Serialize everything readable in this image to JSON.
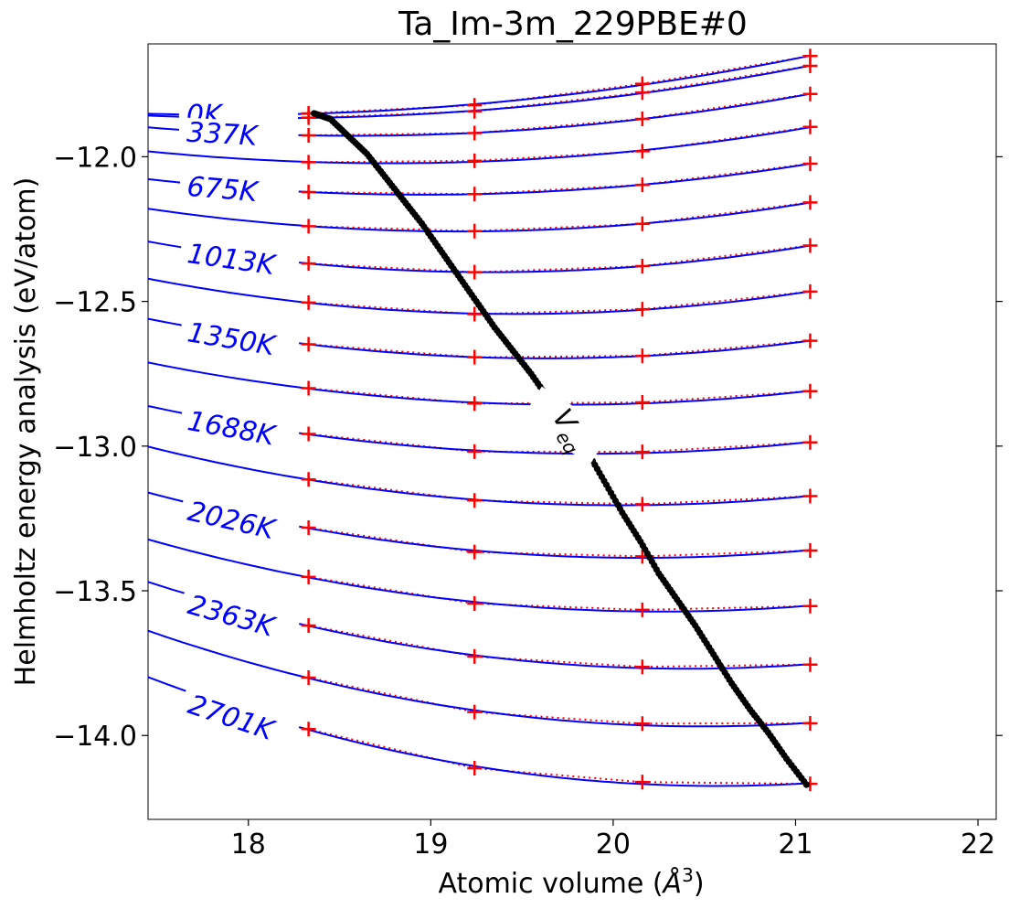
{
  "chart_data": {
    "type": "line",
    "title": "Ta_Im-3m_229PBE#0",
    "xlabel": "Atomic volume (",
    "xlabel_unit": "Å",
    "xlabel_sup": "3",
    "xlabel_close": ")",
    "ylabel": "Helmholtz energy analysis (eV/atom)",
    "xlim": [
      17.45,
      22.1
    ],
    "ylim": [
      -14.29,
      -11.61
    ],
    "xticks": [
      18,
      19,
      20,
      21,
      22
    ],
    "yticks": [
      -12.0,
      -12.5,
      -13.0,
      -13.5,
      -14.0
    ],
    "xtick_labels": [
      "18",
      "19",
      "20",
      "21",
      "22"
    ],
    "ytick_labels": [
      "−12.0",
      "−12.5",
      "−13.0",
      "−13.5",
      "−14.0"
    ],
    "grid": false,
    "colors": {
      "fit": "#0000ff",
      "points": "#ff0000",
      "dotted": "#ff0000",
      "veq": "#000000",
      "temp_label": "#0000ff"
    },
    "volumes": [
      18.33,
      19.24,
      20.16,
      21.08
    ],
    "series": [
      {
        "name": "0K",
        "energies": [
          -11.85,
          -11.822,
          -11.748,
          -11.652
        ]
      },
      {
        "name": "",
        "energies": [
          -11.865,
          -11.843,
          -11.778,
          -11.686
        ]
      },
      {
        "name": "337K",
        "energies": [
          -11.926,
          -11.918,
          -11.869,
          -11.783
        ]
      },
      {
        "name": "",
        "energies": [
          -12.019,
          -12.014,
          -11.981,
          -11.897
        ]
      },
      {
        "name": "675K",
        "energies": [
          -12.122,
          -12.129,
          -12.097,
          -12.024
        ]
      },
      {
        "name": "",
        "energies": [
          -12.24,
          -12.257,
          -12.232,
          -12.158
        ]
      },
      {
        "name": "1013K",
        "energies": [
          -12.369,
          -12.399,
          -12.378,
          -12.307
        ]
      },
      {
        "name": "",
        "energies": [
          -12.504,
          -12.544,
          -12.527,
          -12.466
        ]
      },
      {
        "name": "1350K",
        "energies": [
          -12.648,
          -12.693,
          -12.688,
          -12.636
        ]
      },
      {
        "name": "",
        "energies": [
          -12.8,
          -12.853,
          -12.849,
          -12.81
        ]
      },
      {
        "name": "1688K",
        "energies": [
          -12.958,
          -13.019,
          -13.02,
          -12.987
        ]
      },
      {
        "name": "",
        "energies": [
          -13.115,
          -13.188,
          -13.201,
          -13.173
        ]
      },
      {
        "name": "2026K",
        "energies": [
          -13.282,
          -13.366,
          -13.381,
          -13.361
        ]
      },
      {
        "name": "",
        "energies": [
          -13.452,
          -13.544,
          -13.566,
          -13.553
        ]
      },
      {
        "name": "2363K",
        "energies": [
          -13.62,
          -13.727,
          -13.763,
          -13.755
        ]
      },
      {
        "name": "",
        "energies": [
          -13.8,
          -13.919,
          -13.959,
          -13.958
        ]
      },
      {
        "name": "2701K",
        "energies": [
          -13.978,
          -14.113,
          -14.161,
          -14.167
        ]
      }
    ],
    "veq_label": "V",
    "veq_label_sub": "eq",
    "veq_curve": [
      [
        18.36,
        -11.85
      ],
      [
        18.45,
        -11.87
      ],
      [
        18.55,
        -11.93
      ],
      [
        18.65,
        -11.99
      ],
      [
        18.75,
        -12.07
      ],
      [
        18.85,
        -12.15
      ],
      [
        18.95,
        -12.23
      ],
      [
        19.05,
        -12.32
      ],
      [
        19.15,
        -12.41
      ],
      [
        19.25,
        -12.5
      ],
      [
        19.35,
        -12.59
      ],
      [
        19.45,
        -12.67
      ],
      [
        19.55,
        -12.75
      ],
      [
        19.65,
        -12.84
      ],
      [
        19.75,
        -12.93
      ],
      [
        19.85,
        -13.01
      ],
      [
        19.95,
        -13.12
      ],
      [
        20.05,
        -13.23
      ],
      [
        20.15,
        -13.33
      ],
      [
        20.25,
        -13.44
      ],
      [
        20.35,
        -13.53
      ],
      [
        20.45,
        -13.62
      ],
      [
        20.55,
        -13.72
      ],
      [
        20.65,
        -13.82
      ],
      [
        20.75,
        -13.91
      ],
      [
        20.85,
        -13.99
      ],
      [
        20.95,
        -14.08
      ],
      [
        21.06,
        -14.17
      ]
    ]
  }
}
